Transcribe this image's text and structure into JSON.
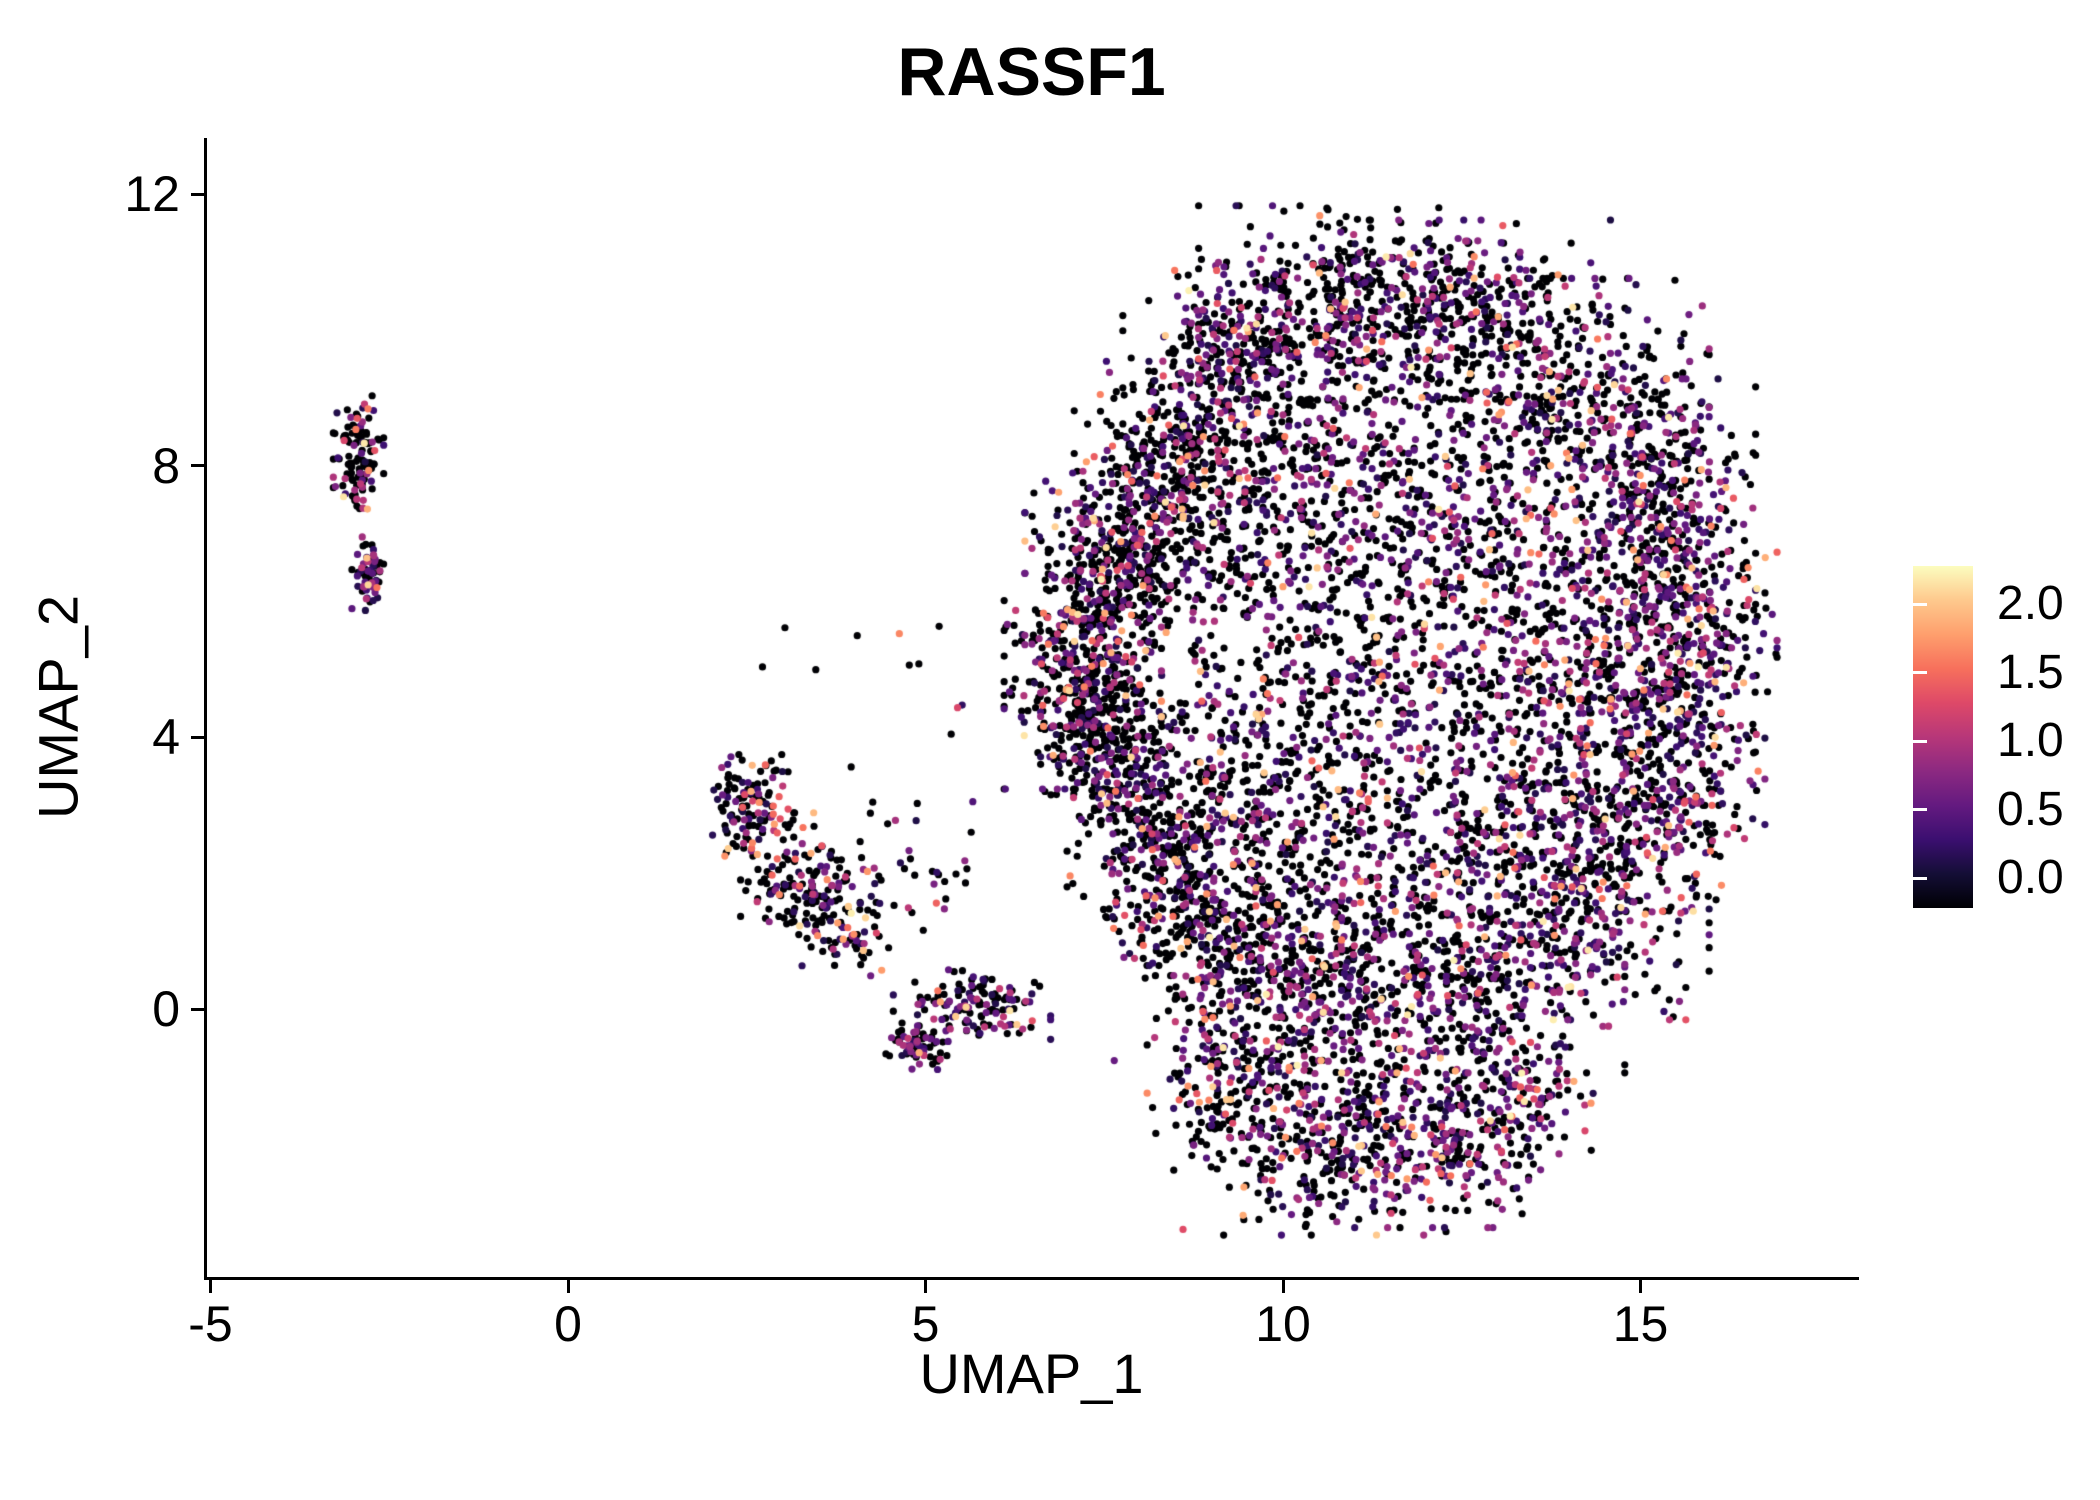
{
  "title": "RASSF1",
  "axes": {
    "x": {
      "label": "UMAP_1",
      "ticks": [
        {
          "v": -5,
          "label": "-5"
        },
        {
          "v": 0,
          "label": "0"
        },
        {
          "v": 5,
          "label": "5"
        },
        {
          "v": 10,
          "label": "10"
        },
        {
          "v": 15,
          "label": "15"
        }
      ]
    },
    "y": {
      "label": "UMAP_2",
      "ticks": [
        {
          "v": 0,
          "label": "0"
        },
        {
          "v": 4,
          "label": "4"
        },
        {
          "v": 8,
          "label": "8"
        },
        {
          "v": 12,
          "label": "12"
        }
      ]
    }
  },
  "legend": {
    "ticks": [
      {
        "v": 2.0,
        "label": "2.0"
      },
      {
        "v": 1.5,
        "label": "1.5"
      },
      {
        "v": 1.0,
        "label": "1.0"
      },
      {
        "v": 0.5,
        "label": "0.5"
      },
      {
        "v": 0.0,
        "label": "0.0"
      }
    ]
  },
  "chart_data": {
    "type": "scatter",
    "subtype": "umap-feature-plot",
    "title": "RASSF1",
    "xlabel": "UMAP_1",
    "ylabel": "UMAP_2",
    "xlim": [
      -5.1,
      18.1
    ],
    "ylim": [
      -3.9,
      12.8
    ],
    "grid": false,
    "legend_position": "right",
    "color_scale": {
      "name": "magma",
      "vmin": 0.0,
      "vmax": 2.3,
      "anchors": [
        "#000004",
        "#140e36",
        "#3b0f70",
        "#641a80",
        "#8c2981",
        "#b73779",
        "#de4968",
        "#f7705c",
        "#fe9f6d",
        "#fec98d",
        "#fcfdbf"
      ]
    },
    "point_radius_px": 3.6,
    "seed": 1337,
    "expression_value_ranges": {
      "zero": 0.0,
      "base_min": 0.28,
      "base_max": 1.23,
      "hot_min": 1.3,
      "hot_max": 2.25
    },
    "clusters": [
      {
        "name": "left-satellite-top",
        "cx": -2.93,
        "cy": 8.15,
        "sx": 0.16,
        "sy": 0.42,
        "n": 115,
        "zero": 0.6,
        "hot": 0.1
      },
      {
        "name": "left-satellite-tail",
        "cx": -2.78,
        "cy": 6.38,
        "sx": 0.11,
        "sy": 0.26,
        "n": 60,
        "zero": 0.35,
        "hot": 0.06
      },
      {
        "name": "mid-cluster-a",
        "cx": 2.55,
        "cy": 3.0,
        "sx": 0.24,
        "sy": 0.34,
        "n": 120,
        "zero": 0.58,
        "hot": 0.1
      },
      {
        "name": "mid-cluster-b",
        "cx": 3.25,
        "cy": 1.9,
        "sx": 0.38,
        "sy": 0.45,
        "n": 130,
        "zero": 0.52,
        "hot": 0.13
      },
      {
        "name": "mid-cluster-c",
        "cx": 3.9,
        "cy": 1.15,
        "sx": 0.3,
        "sy": 0.3,
        "n": 75,
        "zero": 0.5,
        "hot": 0.12
      },
      {
        "name": "mid-cluster-spray",
        "cx": 4.7,
        "cy": 2.15,
        "sx": 0.6,
        "sy": 0.45,
        "n": 40,
        "zero": 0.55,
        "hot": 0.1
      },
      {
        "name": "bridge-cluster",
        "cx": 5.65,
        "cy": 0.05,
        "sx": 0.5,
        "sy": 0.24,
        "n": 135,
        "zero": 0.45,
        "hot": 0.04
      },
      {
        "name": "bridge-knot",
        "cx": 4.88,
        "cy": -0.55,
        "sx": 0.22,
        "sy": 0.16,
        "n": 60,
        "zero": 0.5,
        "hot": 0.03
      },
      {
        "name": "sparse-outliers",
        "cx": 4.7,
        "cy": 4.7,
        "sx": 0.9,
        "sy": 0.7,
        "n": 12,
        "zero": 0.55,
        "hot": 0.15
      },
      {
        "name": "blob-left-edge",
        "cx": 7.2,
        "cy": 5.0,
        "sx": 0.5,
        "sy": 0.8,
        "n": 420,
        "zero": 0.62,
        "hot": 0.09
      },
      {
        "name": "blob-left-upper",
        "cx": 7.6,
        "cy": 6.6,
        "sx": 0.55,
        "sy": 0.6,
        "n": 300,
        "zero": 0.6,
        "hot": 0.06
      },
      {
        "name": "blob-upperleft-a",
        "cx": 8.4,
        "cy": 8.0,
        "sx": 0.6,
        "sy": 0.7,
        "n": 330,
        "zero": 0.62,
        "hot": 0.05
      },
      {
        "name": "blob-upperleft-b",
        "cx": 9.3,
        "cy": 9.5,
        "sx": 0.7,
        "sy": 0.7,
        "n": 330,
        "zero": 0.62,
        "hot": 0.05
      },
      {
        "name": "blob-top-a",
        "cx": 10.8,
        "cy": 10.4,
        "sx": 0.9,
        "sy": 0.65,
        "n": 330,
        "zero": 0.6,
        "hot": 0.05
      },
      {
        "name": "blob-top-b",
        "cx": 12.6,
        "cy": 10.3,
        "sx": 0.9,
        "sy": 0.6,
        "n": 300,
        "zero": 0.58,
        "hot": 0.05
      },
      {
        "name": "blob-topright",
        "cx": 14.2,
        "cy": 9.0,
        "sx": 0.8,
        "sy": 0.8,
        "n": 330,
        "zero": 0.55,
        "hot": 0.06
      },
      {
        "name": "blob-right-a",
        "cx": 15.4,
        "cy": 7.3,
        "sx": 0.55,
        "sy": 0.9,
        "n": 330,
        "zero": 0.5,
        "hot": 0.07
      },
      {
        "name": "blob-right-b",
        "cx": 15.7,
        "cy": 5.2,
        "sx": 0.55,
        "sy": 1.0,
        "n": 330,
        "zero": 0.48,
        "hot": 0.07
      },
      {
        "name": "blob-right-c",
        "cx": 15.2,
        "cy": 3.2,
        "sx": 0.7,
        "sy": 0.8,
        "n": 300,
        "zero": 0.5,
        "hot": 0.07
      },
      {
        "name": "blob-lowerright",
        "cx": 14.2,
        "cy": 1.6,
        "sx": 0.8,
        "sy": 0.8,
        "n": 300,
        "zero": 0.52,
        "hot": 0.06
      },
      {
        "name": "blob-bottom-a",
        "cx": 12.8,
        "cy": 0.6,
        "sx": 0.9,
        "sy": 0.7,
        "n": 330,
        "zero": 0.55,
        "hot": 0.06
      },
      {
        "name": "blob-bottom-b",
        "cx": 11.0,
        "cy": 0.4,
        "sx": 0.9,
        "sy": 0.7,
        "n": 360,
        "zero": 0.55,
        "hot": 0.06
      },
      {
        "name": "blob-bottom-c",
        "cx": 9.4,
        "cy": 1.0,
        "sx": 0.8,
        "sy": 0.8,
        "n": 360,
        "zero": 0.6,
        "hot": 0.06
      },
      {
        "name": "blob-lowerleft",
        "cx": 8.3,
        "cy": 2.4,
        "sx": 0.6,
        "sy": 0.8,
        "n": 330,
        "zero": 0.62,
        "hot": 0.06
      },
      {
        "name": "blob-left-lower",
        "cx": 7.6,
        "cy": 3.9,
        "sx": 0.45,
        "sy": 0.6,
        "n": 240,
        "zero": 0.62,
        "hot": 0.07
      },
      {
        "name": "blob-interior-a",
        "cx": 9.0,
        "cy": 6.3,
        "sx": 0.8,
        "sy": 1.0,
        "n": 230,
        "zero": 0.6,
        "hot": 0.05
      },
      {
        "name": "blob-interior-b",
        "cx": 10.3,
        "cy": 8.2,
        "sx": 0.9,
        "sy": 0.9,
        "n": 230,
        "zero": 0.58,
        "hot": 0.05
      },
      {
        "name": "blob-interior-c",
        "cx": 12.2,
        "cy": 8.5,
        "sx": 1.0,
        "sy": 0.9,
        "n": 230,
        "zero": 0.55,
        "hot": 0.05
      },
      {
        "name": "blob-interior-d",
        "cx": 13.7,
        "cy": 6.8,
        "sx": 0.9,
        "sy": 0.9,
        "n": 240,
        "zero": 0.52,
        "hot": 0.06
      },
      {
        "name": "blob-interior-e",
        "cx": 12.7,
        "cy": 4.8,
        "sx": 1.0,
        "sy": 1.0,
        "n": 220,
        "zero": 0.55,
        "hot": 0.06
      },
      {
        "name": "blob-interior-f",
        "cx": 10.8,
        "cy": 4.8,
        "sx": 0.9,
        "sy": 1.0,
        "n": 220,
        "zero": 0.58,
        "hot": 0.06
      },
      {
        "name": "blob-interior-g",
        "cx": 9.7,
        "cy": 3.2,
        "sx": 0.8,
        "sy": 0.8,
        "n": 240,
        "zero": 0.6,
        "hot": 0.06
      },
      {
        "name": "blob-interior-h",
        "cx": 11.5,
        "cy": 2.6,
        "sx": 0.9,
        "sy": 0.8,
        "n": 230,
        "zero": 0.57,
        "hot": 0.06
      },
      {
        "name": "blob-interior-i",
        "cx": 13.5,
        "cy": 3.0,
        "sx": 0.8,
        "sy": 0.8,
        "n": 210,
        "zero": 0.55,
        "hot": 0.06
      },
      {
        "name": "blob-interior-j",
        "cx": 14.6,
        "cy": 5.0,
        "sx": 0.7,
        "sy": 0.8,
        "n": 220,
        "zero": 0.5,
        "hot": 0.07
      },
      {
        "name": "blob-interior-k",
        "cx": 11.7,
        "cy": 6.7,
        "sx": 0.9,
        "sy": 0.9,
        "n": 200,
        "zero": 0.57,
        "hot": 0.05
      },
      {
        "name": "bottom-lobe-a",
        "cx": 10.3,
        "cy": -1.9,
        "sx": 0.9,
        "sy": 0.65,
        "n": 330,
        "zero": 0.55,
        "hot": 0.07
      },
      {
        "name": "bottom-lobe-b",
        "cx": 12.1,
        "cy": -1.9,
        "sx": 0.8,
        "sy": 0.6,
        "n": 280,
        "zero": 0.5,
        "hot": 0.08
      },
      {
        "name": "bottom-lobe-left",
        "cx": 9.2,
        "cy": -0.9,
        "sx": 0.5,
        "sy": 0.5,
        "n": 160,
        "zero": 0.58,
        "hot": 0.05
      },
      {
        "name": "bottom-lobe-right",
        "cx": 13.3,
        "cy": -1.2,
        "sx": 0.5,
        "sy": 0.5,
        "n": 140,
        "zero": 0.5,
        "hot": 0.08
      }
    ]
  }
}
